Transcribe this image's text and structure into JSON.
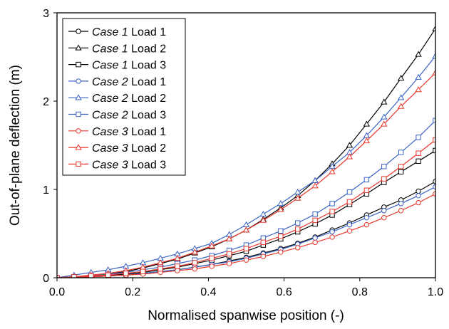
{
  "chart_data": {
    "type": "line",
    "title": "",
    "xlabel": "Normalised spanwise position (-)",
    "ylabel": "Out-of-plane deflection (m)",
    "xlim": [
      0.0,
      1.0
    ],
    "ylim": [
      0,
      3
    ],
    "x_ticks": [
      "0.0",
      "0.2",
      "0.4",
      "0.6",
      "0.8",
      "1.0"
    ],
    "y_ticks": [
      "0",
      "1",
      "2",
      "3"
    ],
    "grid": false,
    "legend_position": "top-left",
    "x": [
      0.0,
      0.045,
      0.09,
      0.135,
      0.182,
      0.227,
      0.273,
      0.318,
      0.364,
      0.409,
      0.455,
      0.5,
      0.545,
      0.591,
      0.636,
      0.682,
      0.727,
      0.773,
      0.818,
      0.864,
      0.909,
      0.955,
      1.0
    ],
    "series": [
      {
        "case": "Case 1",
        "load": "Load 1",
        "color": "#000000",
        "marker": "circle",
        "values": [
          0.0,
          0.0,
          0.01,
          0.02,
          0.03,
          0.05,
          0.07,
          0.09,
          0.12,
          0.15,
          0.19,
          0.23,
          0.28,
          0.33,
          0.39,
          0.46,
          0.54,
          0.62,
          0.71,
          0.8,
          0.88,
          0.98,
          1.09
        ]
      },
      {
        "case": "Case 1",
        "load": "Load 2",
        "color": "#000000",
        "marker": "triangle",
        "values": [
          0.0,
          0.01,
          0.02,
          0.04,
          0.07,
          0.11,
          0.16,
          0.21,
          0.28,
          0.35,
          0.44,
          0.54,
          0.66,
          0.79,
          0.93,
          1.1,
          1.29,
          1.5,
          1.74,
          1.99,
          2.26,
          2.53,
          2.82
        ]
      },
      {
        "case": "Case 1",
        "load": "Load 3",
        "color": "#000000",
        "marker": "square",
        "values": [
          0.0,
          0.01,
          0.01,
          0.03,
          0.04,
          0.06,
          0.09,
          0.12,
          0.16,
          0.2,
          0.25,
          0.3,
          0.37,
          0.44,
          0.52,
          0.61,
          0.71,
          0.83,
          0.95,
          1.08,
          1.2,
          1.32,
          1.44
        ]
      },
      {
        "case": "Case 2",
        "load": "Load 1",
        "color": "#3a63c4",
        "marker": "circle",
        "values": [
          0.0,
          0.0,
          0.01,
          0.02,
          0.03,
          0.05,
          0.07,
          0.09,
          0.12,
          0.15,
          0.18,
          0.22,
          0.27,
          0.32,
          0.38,
          0.45,
          0.52,
          0.6,
          0.68,
          0.76,
          0.84,
          0.93,
          1.03
        ]
      },
      {
        "case": "Case 2",
        "load": "Load 2",
        "color": "#3a63c4",
        "marker": "triangle",
        "values": [
          0.0,
          0.03,
          0.06,
          0.09,
          0.13,
          0.17,
          0.22,
          0.27,
          0.33,
          0.39,
          0.49,
          0.6,
          0.72,
          0.84,
          0.97,
          1.1,
          1.26,
          1.42,
          1.61,
          1.82,
          2.04,
          2.27,
          2.51
        ]
      },
      {
        "case": "Case 2",
        "load": "Load 3",
        "color": "#3a63c4",
        "marker": "square",
        "values": [
          0.0,
          0.01,
          0.02,
          0.04,
          0.06,
          0.09,
          0.12,
          0.16,
          0.2,
          0.25,
          0.31,
          0.37,
          0.45,
          0.53,
          0.62,
          0.72,
          0.84,
          0.97,
          1.11,
          1.26,
          1.42,
          1.59,
          1.78
        ]
      },
      {
        "case": "Case 3",
        "load": "Load 1",
        "color": "#e8362b",
        "marker": "circle",
        "values": [
          0.0,
          0.0,
          0.01,
          0.02,
          0.03,
          0.04,
          0.06,
          0.08,
          0.1,
          0.13,
          0.16,
          0.2,
          0.24,
          0.29,
          0.34,
          0.4,
          0.46,
          0.53,
          0.6,
          0.68,
          0.76,
          0.85,
          0.95
        ]
      },
      {
        "case": "Case 3",
        "load": "Load 2",
        "color": "#e8362b",
        "marker": "triangle",
        "values": [
          0.0,
          0.01,
          0.03,
          0.05,
          0.08,
          0.12,
          0.17,
          0.22,
          0.29,
          0.36,
          0.44,
          0.54,
          0.65,
          0.77,
          0.9,
          1.04,
          1.2,
          1.37,
          1.55,
          1.74,
          1.94,
          2.13,
          2.32
        ]
      },
      {
        "case": "Case 3",
        "load": "Load 3",
        "color": "#e8362b",
        "marker": "square",
        "values": [
          0.0,
          0.01,
          0.02,
          0.03,
          0.05,
          0.07,
          0.1,
          0.13,
          0.17,
          0.22,
          0.27,
          0.33,
          0.4,
          0.47,
          0.55,
          0.65,
          0.75,
          0.86,
          0.99,
          1.12,
          1.26,
          1.41,
          1.56
        ]
      }
    ]
  }
}
